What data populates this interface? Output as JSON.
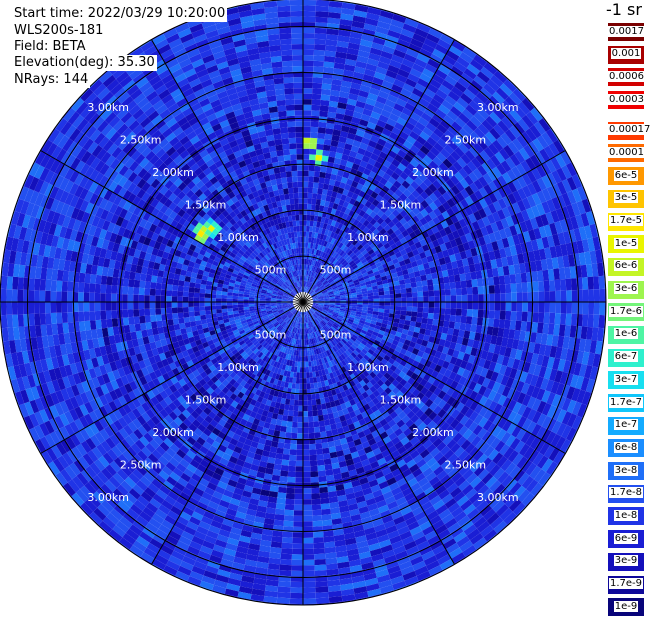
{
  "info": {
    "start_time": "Start time: 2022/03/29 10:20:00",
    "device": "WLS200s-181",
    "field": "Field: BETA",
    "elevation": "Elevation(deg): 35.30",
    "nrays": "NRays: 144"
  },
  "colorbar": {
    "title": "-1 sr",
    "high_labels": [
      "0.0017",
      "0.001",
      "0.0006",
      "0.0003"
    ],
    "high_colors": [
      "#7a0000",
      "#a80000",
      "#d20000",
      "#f00000"
    ],
    "labels": [
      "0.00017",
      "0.0001",
      "6e-5",
      "3e-5",
      "1.7e-5",
      "1e-5",
      "6e-6",
      "3e-6",
      "1.7e-6",
      "1e-6",
      "6e-7",
      "3e-7",
      "1.7e-7",
      "1e-7",
      "6e-8",
      "3e-8",
      "1.7e-8",
      "1e-8",
      "6e-9",
      "3e-9",
      "1.7e-9",
      "1e-9"
    ],
    "colors": [
      "#ff3a00",
      "#ff6a00",
      "#ff9800",
      "#ffc400",
      "#ffe600",
      "#eaf500",
      "#c4f525",
      "#9ef54f",
      "#74f57a",
      "#4ef5a4",
      "#2ef0cd",
      "#18dff0",
      "#10c6fb",
      "#14abff",
      "#1a8eff",
      "#1f6ff8",
      "#2350f0",
      "#2034e6",
      "#1a1ed4",
      "#1410bb",
      "#0e089a",
      "#08047a"
    ]
  },
  "chart_data": {
    "type": "heatmap",
    "projection": "polar-ppi",
    "title": "",
    "field": "BETA",
    "units": "-1 sr",
    "elevation_deg": 35.3,
    "n_rays": 144,
    "range_rings_km": [
      0.5,
      1.0,
      1.5,
      2.0,
      2.5,
      3.0
    ],
    "max_range_km": 3.3,
    "spokes_deg": [
      0,
      30,
      60,
      90,
      120,
      150,
      180,
      210,
      240,
      270,
      300,
      330
    ],
    "ring_labels_upper": [
      "500m",
      "1.00km",
      "1.50km",
      "2.00km",
      "2.50km",
      "3.00km"
    ],
    "ring_labels_lower": [
      "500m",
      "1.00km",
      "1.50km",
      "2.00km",
      "2.50km",
      "3.00km"
    ],
    "background_beta": 1e-08,
    "hotspots": [
      {
        "azimuth_deg": 5,
        "range_km": 1.55,
        "beta": 1e-05
      },
      {
        "azimuth_deg": 1,
        "range_km": 1.7,
        "beta": 3e-05
      },
      {
        "azimuth_deg": 307,
        "range_km": 1.25,
        "beta": 1e-05
      },
      {
        "azimuth_deg": 303,
        "range_km": 1.3,
        "beta": 3e-05
      }
    ]
  }
}
